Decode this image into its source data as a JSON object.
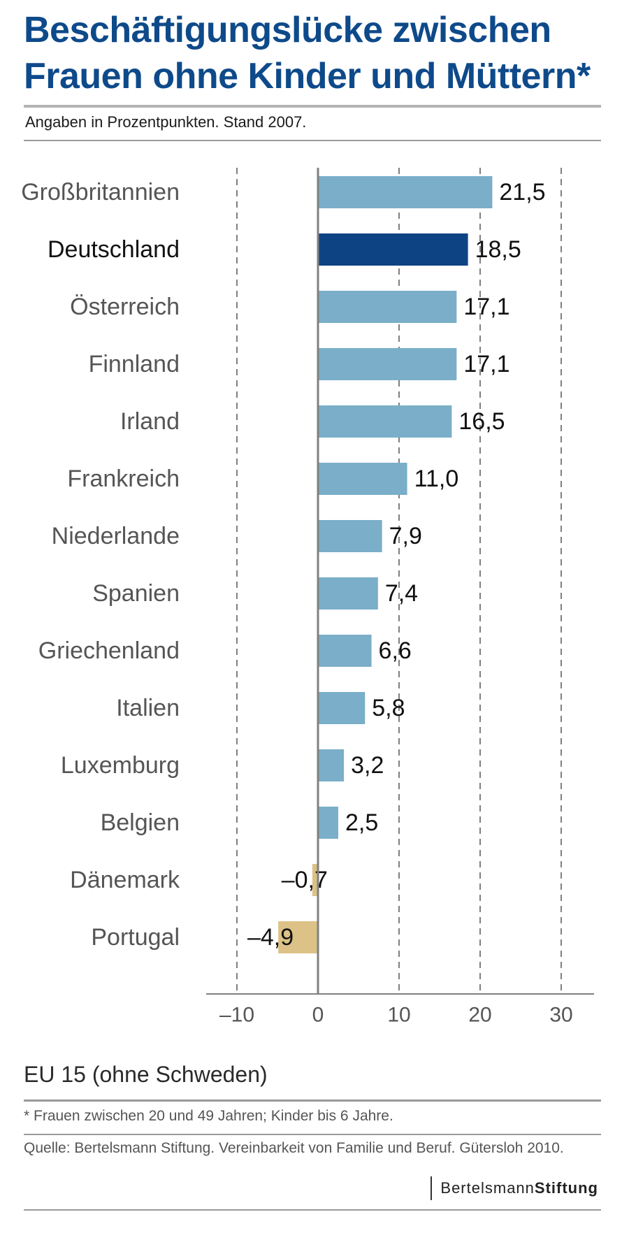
{
  "title_line1": "Beschäftigungslücke zwischen",
  "title_line2": "Frauen ohne Kinder und Müttern*",
  "subtitle": "Angaben in Prozentpunkten. Stand 2007.",
  "eu_label": "EU 15 (ohne Schweden)",
  "footnote": "* Frauen zwischen 20 und 49 Jahren; Kinder bis 6 Jahre.",
  "source": "Quelle: Bertelsmann Stiftung. Vereinbarkeit von Familie und Beruf. Gütersloh 2010.",
  "logo": {
    "part1": "Bertelsmann",
    "part2": "Stiftung"
  },
  "colors": {
    "title": "#0e4a8a",
    "bar_positive": "#7aaec9",
    "bar_highlight": "#0e4383",
    "bar_negative": "#dcc286",
    "axis": "#808080",
    "grid": "#555555"
  },
  "chart_data": {
    "type": "bar",
    "orientation": "horizontal",
    "categories": [
      "Großbritannien",
      "Deutschland",
      "Österreich",
      "Finnland",
      "Irland",
      "Frankreich",
      "Niederlande",
      "Spanien",
      "Griechenland",
      "Italien",
      "Luxemburg",
      "Belgien",
      "Dänemark",
      "Portugal"
    ],
    "values": [
      21.5,
      18.5,
      17.1,
      17.1,
      16.5,
      11.0,
      7.9,
      7.4,
      6.6,
      5.8,
      3.2,
      2.5,
      -0.7,
      -4.9
    ],
    "value_labels": [
      "21,5",
      "18,5",
      "17,1",
      "17,1",
      "16,5",
      "11,0",
      "7,9",
      "7,4",
      "6,6",
      "5,8",
      "3,2",
      "2,5",
      "–0,7",
      "–4,9"
    ],
    "highlight": "Deutschland",
    "xlim": [
      -14,
      34
    ],
    "xticks": [
      -10,
      0,
      10,
      20,
      30
    ],
    "xtick_labels": [
      "–10",
      "0",
      "10",
      "20",
      "30"
    ],
    "grid": "vertical dashed"
  }
}
